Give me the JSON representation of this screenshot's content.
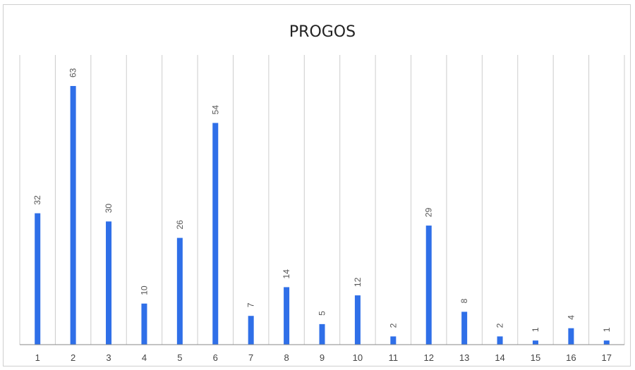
{
  "chart_data": {
    "type": "bar",
    "title": "PROGOS",
    "xlabel": "",
    "ylabel": "",
    "categories": [
      "1",
      "2",
      "3",
      "4",
      "5",
      "6",
      "7",
      "8",
      "9",
      "10",
      "11",
      "12",
      "13",
      "14",
      "15",
      "16",
      "17"
    ],
    "values": [
      32,
      63,
      30,
      10,
      26,
      54,
      7,
      14,
      5,
      12,
      2,
      29,
      8,
      2,
      1,
      4,
      1
    ],
    "ylim": [
      0,
      70
    ],
    "grid": "vertical",
    "legend": "none",
    "bar_color": "#2f6fe8",
    "grid_color": "#cccccc",
    "axis_color": "#8a8a8a"
  }
}
